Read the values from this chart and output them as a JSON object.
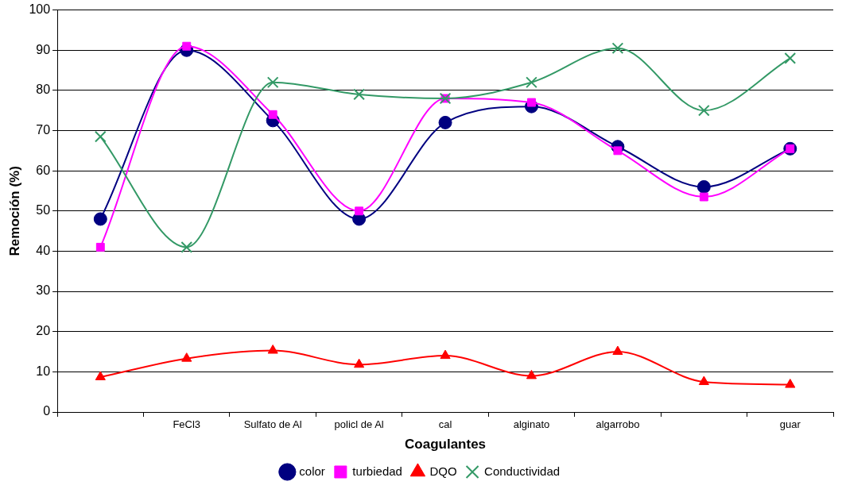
{
  "chart_data": {
    "type": "line",
    "xlabel": "Coagulantes",
    "ylabel": "Remoción (%)",
    "categories": [
      null,
      "FeCl3",
      "Sulfato de Al",
      "policl de Al",
      "cal",
      "alginato",
      "algarrobo",
      null,
      "guar"
    ],
    "series": [
      {
        "name": "color",
        "color": "#000080",
        "marker": "circle",
        "values": [
          48,
          90,
          72.5,
          48,
          72,
          76,
          66,
          56,
          65.5
        ]
      },
      {
        "name": "turbiedad",
        "color": "#ff00ff",
        "marker": "square",
        "values": [
          41,
          91,
          74,
          50,
          78,
          77,
          65,
          53.5,
          65.5
        ]
      },
      {
        "name": "DQO",
        "color": "#ff0000",
        "marker": "triangle",
        "values": [
          8.7,
          13.3,
          15.3,
          11.8,
          14,
          9,
          15,
          7.5,
          6.8
        ]
      },
      {
        "name": "Conductividad",
        "color": "#339966",
        "marker": "cross",
        "values": [
          68.5,
          41,
          82,
          79,
          78,
          82,
          90.5,
          75,
          88
        ]
      }
    ],
    "ylim": [
      0,
      100
    ],
    "yticks": [
      0,
      10,
      20,
      30,
      40,
      50,
      60,
      70,
      80,
      90,
      100
    ],
    "grid": "y",
    "legend": "bottom",
    "line_style": "solid"
  }
}
